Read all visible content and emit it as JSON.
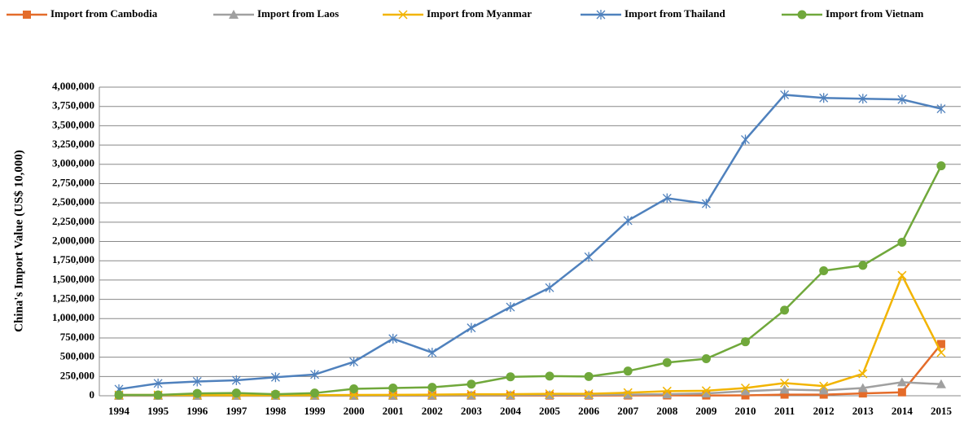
{
  "chart_data": {
    "type": "line",
    "y_label": "China's Import Value (US$ 10,000)",
    "categories": [
      "1994",
      "1995",
      "1996",
      "1997",
      "1998",
      "1999",
      "2000",
      "2001",
      "2002",
      "2003",
      "2004",
      "2005",
      "2006",
      "2007",
      "2008",
      "2009",
      "2010",
      "2011",
      "2012",
      "2013",
      "2014",
      "2015"
    ],
    "series": [
      {
        "name": "Import from Cambodia",
        "color": "#e46c2a",
        "marker": "square",
        "values": [
          1000,
          1000,
          1000,
          1000,
          1000,
          1000,
          1000,
          1000,
          1000,
          2000,
          2000,
          3000,
          3000,
          4000,
          5000,
          4000,
          5000,
          15000,
          15000,
          30000,
          45000,
          670000
        ]
      },
      {
        "name": "Import from Laos",
        "color": "#a0a0a0",
        "marker": "triangle",
        "values": [
          2000,
          1000,
          1000,
          1000,
          1000,
          1000,
          2000,
          3000,
          4000,
          5000,
          7000,
          10000,
          10000,
          15000,
          20000,
          30000,
          60000,
          80000,
          70000,
          100000,
          175000,
          150000
        ]
      },
      {
        "name": "Import from Myanmar",
        "color": "#f2b400",
        "marker": "x",
        "values": [
          10000,
          10000,
          8000,
          6000,
          6000,
          8000,
          10000,
          12000,
          15000,
          20000,
          20000,
          25000,
          25000,
          40000,
          60000,
          65000,
          100000,
          165000,
          125000,
          285000,
          1560000,
          560000
        ]
      },
      {
        "name": "Import from Thailand",
        "color": "#4f81bd",
        "marker": "star",
        "values": [
          85000,
          160000,
          185000,
          200000,
          240000,
          275000,
          440000,
          740000,
          560000,
          880000,
          1150000,
          1400000,
          1800000,
          2270000,
          2560000,
          2490000,
          3320000,
          3900000,
          3860000,
          3850000,
          3840000,
          3720000
        ]
      },
      {
        "name": "Import from Vietnam",
        "color": "#70a83b",
        "marker": "circle",
        "values": [
          10000,
          10000,
          30000,
          35000,
          20000,
          35000,
          90000,
          100000,
          110000,
          150000,
          245000,
          255000,
          250000,
          320000,
          430000,
          480000,
          700000,
          1110000,
          1620000,
          1690000,
          1990000,
          2980000
        ]
      }
    ],
    "ylim": [
      0,
      4000000
    ],
    "yticks": [
      0,
      {
        "value": 250000,
        "label": "250,000"
      },
      {
        "value": 500000,
        "label": "500,000"
      },
      {
        "value": 750000,
        "label": "750,000"
      },
      {
        "value": 1000000,
        "label": "1,000,000"
      },
      {
        "value": 1250000,
        "label": "1,250,000"
      },
      {
        "value": 1500000,
        "label": "1,500,000"
      },
      {
        "value": 1750000,
        "label": "1,750,000"
      },
      {
        "value": 2000000,
        "label": "2,000,000"
      },
      {
        "value": 2250000,
        "label": "2,250,000"
      },
      {
        "value": 2500000,
        "label": "2,500,000"
      },
      {
        "value": 2750000,
        "label": "2,750,000"
      },
      {
        "value": 3000000,
        "label": "3,000,000"
      },
      {
        "value": 3250000,
        "label": "3,250,000"
      },
      {
        "value": 3500000,
        "label": "3,500,000"
      },
      {
        "value": 3750000,
        "label": "3,750,000"
      },
      {
        "value": 4000000,
        "label": "4,000,000"
      }
    ],
    "grid": true,
    "legend": "top"
  }
}
